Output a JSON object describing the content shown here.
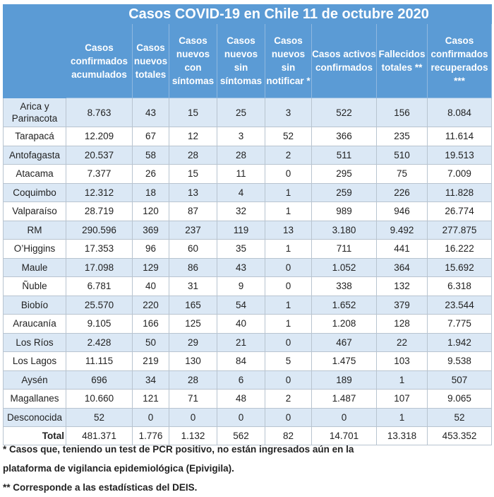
{
  "title": "Casos COVID-19 en Chile 11 de octubre 2020",
  "columns": [
    "Casos confirmados acumulados",
    "Casos nuevos totales",
    "Casos nuevos con síntomas",
    "Casos nuevos sin síntomas",
    "Casos nuevos sin notificar *",
    "Casos activos confirmados",
    "Fallecidos totales **",
    "Casos confirmados recuperados ***"
  ],
  "rows": [
    {
      "region": "Arica y Parinacota",
      "values": [
        "8.763",
        "43",
        "15",
        "25",
        "3",
        "522",
        "156",
        "8.084"
      ]
    },
    {
      "region": "Tarapacá",
      "values": [
        "12.209",
        "67",
        "12",
        "3",
        "52",
        "366",
        "235",
        "11.614"
      ]
    },
    {
      "region": "Antofagasta",
      "values": [
        "20.537",
        "58",
        "28",
        "28",
        "2",
        "511",
        "510",
        "19.513"
      ]
    },
    {
      "region": "Atacama",
      "values": [
        "7.377",
        "26",
        "15",
        "11",
        "0",
        "295",
        "75",
        "7.009"
      ]
    },
    {
      "region": "Coquimbo",
      "values": [
        "12.312",
        "18",
        "13",
        "4",
        "1",
        "259",
        "226",
        "11.828"
      ]
    },
    {
      "region": "Valparaíso",
      "values": [
        "28.719",
        "120",
        "87",
        "32",
        "1",
        "989",
        "946",
        "26.774"
      ]
    },
    {
      "region": "RM",
      "values": [
        "290.596",
        "369",
        "237",
        "119",
        "13",
        "3.180",
        "9.492",
        "277.875"
      ]
    },
    {
      "region": "O’Higgins",
      "values": [
        "17.353",
        "96",
        "60",
        "35",
        "1",
        "711",
        "441",
        "16.222"
      ]
    },
    {
      "region": "Maule",
      "values": [
        "17.098",
        "129",
        "86",
        "43",
        "0",
        "1.052",
        "364",
        "15.692"
      ]
    },
    {
      "region": "Ñuble",
      "values": [
        "6.781",
        "40",
        "31",
        "9",
        "0",
        "338",
        "132",
        "6.318"
      ]
    },
    {
      "region": "Biobío",
      "values": [
        "25.570",
        "220",
        "165",
        "54",
        "1",
        "1.652",
        "379",
        "23.544"
      ]
    },
    {
      "region": "Araucanía",
      "values": [
        "9.105",
        "166",
        "125",
        "40",
        "1",
        "1.208",
        "128",
        "7.775"
      ]
    },
    {
      "region": "Los Ríos",
      "values": [
        "2.428",
        "50",
        "29",
        "21",
        "0",
        "467",
        "22",
        "1.942"
      ]
    },
    {
      "region": "Los Lagos",
      "values": [
        "11.115",
        "219",
        "130",
        "84",
        "5",
        "1.475",
        "103",
        "9.538"
      ]
    },
    {
      "region": "Aysén",
      "values": [
        "696",
        "34",
        "28",
        "6",
        "0",
        "189",
        "1",
        "507"
      ]
    },
    {
      "region": "Magallanes",
      "values": [
        "10.660",
        "121",
        "71",
        "48",
        "2",
        "1.487",
        "107",
        "9.065"
      ]
    },
    {
      "region": "Desconocida",
      "values": [
        "52",
        "0",
        "0",
        "0",
        "0",
        "0",
        "1",
        "52"
      ]
    }
  ],
  "total": {
    "label": "Total",
    "values": [
      "481.371",
      "1.776",
      "1.132",
      "562",
      "82",
      "14.701",
      "13.318",
      "453.352"
    ]
  },
  "notes": [
    "* Casos que, teniendo un test de PCR positivo, no están ingresados aún en la",
    "plataforma de vigilancia epidemiológica (Epivigila).",
    "** Corresponde a las estadísticas del DEIS."
  ],
  "colors": {
    "header": "#5b9bd5",
    "stripe": "#dbe8f5",
    "border": "#b8c4d0"
  }
}
